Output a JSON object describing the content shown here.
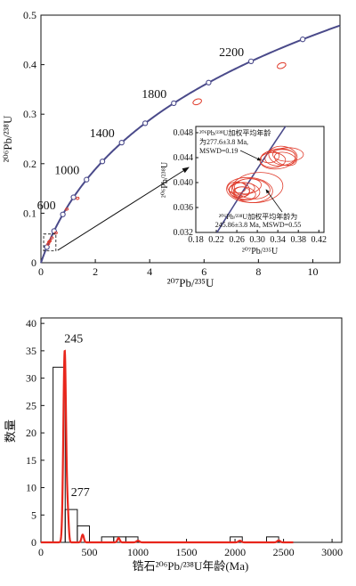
{
  "chart_data": [
    {
      "type": "scatter",
      "subtype": "concordia",
      "xlabel": "²⁰⁷Pb/²³⁵U",
      "ylabel": "²⁰⁶Pb/²³⁸U",
      "xlim": [
        0,
        11
      ],
      "ylim": [
        0,
        0.5
      ],
      "xticks": [
        "0",
        "2",
        "4",
        "6",
        "8",
        "10"
      ],
      "yticks": [
        "0",
        "0.1",
        "0.2",
        "0.3",
        "0.4",
        "0.5"
      ],
      "curve_color": "#4a4a8a",
      "ellipse_color": "#e03a2a",
      "concordia_markers": [
        {
          "label": "600",
          "age": 600
        },
        {
          "label": "1000",
          "age": 1000
        },
        {
          "label": "1400",
          "age": 1400
        },
        {
          "label": "1800",
          "age": 1800
        },
        {
          "label": "2200",
          "age": 2200
        }
      ],
      "ellipses": [
        {
          "x": 0.27,
          "y": 0.038
        },
        {
          "x": 0.3,
          "y": 0.042
        },
        {
          "x": 0.33,
          "y": 0.044
        },
        {
          "x": 0.4,
          "y": 0.05
        },
        {
          "x": 0.55,
          "y": 0.06
        },
        {
          "x": 0.95,
          "y": 0.108
        },
        {
          "x": 1.35,
          "y": 0.13
        },
        {
          "x": 5.75,
          "y": 0.325
        },
        {
          "x": 8.85,
          "y": 0.398
        }
      ],
      "inset": {
        "xlabel": "²⁰⁷Pb/²³⁵U",
        "ylabel": "²⁰⁶Pb/²³⁸U",
        "xlim": [
          0.18,
          0.43
        ],
        "ylim": [
          0.032,
          0.049
        ],
        "xticks": [
          "0.18",
          "0.22",
          "0.26",
          "0.30",
          "0.34",
          "0.38",
          "0.42"
        ],
        "yticks": [
          "0.032",
          "0.036",
          "0.040",
          "0.044",
          "0.048"
        ],
        "note_upper": [
          "²⁰⁶Pb/²³⁸U加权平均年龄",
          "为277.6±3.8 Ma,",
          "MSWD=0.19"
        ],
        "note_lower": [
          "²⁰⁶Pb/²³⁸U加权平均年龄为",
          "245.86±3.8 Ma, MSWD=0.55"
        ],
        "cluster_upper": [
          {
            "x": 0.34,
            "y": 0.0438,
            "rx": 0.035,
            "ry": 0.0016,
            "angle": -8
          },
          {
            "x": 0.345,
            "y": 0.044,
            "rx": 0.03,
            "ry": 0.0013,
            "angle": -5
          },
          {
            "x": 0.35,
            "y": 0.0443,
            "rx": 0.028,
            "ry": 0.0015,
            "angle": 10
          },
          {
            "x": 0.33,
            "y": 0.0436,
            "rx": 0.025,
            "ry": 0.0012,
            "angle": 0
          },
          {
            "x": 0.355,
            "y": 0.0438,
            "rx": 0.022,
            "ry": 0.001,
            "angle": 15
          },
          {
            "x": 0.36,
            "y": 0.0445,
            "rx": 0.03,
            "ry": 0.0011,
            "angle": 0
          },
          {
            "x": 0.325,
            "y": 0.0441,
            "rx": 0.018,
            "ry": 0.0009,
            "angle": -10
          }
        ],
        "cluster_lower": [
          {
            "x": 0.265,
            "y": 0.0388,
            "rx": 0.02,
            "ry": 0.0012,
            "angle": 0
          },
          {
            "x": 0.27,
            "y": 0.039,
            "rx": 0.025,
            "ry": 0.001,
            "angle": -5
          },
          {
            "x": 0.275,
            "y": 0.0386,
            "rx": 0.03,
            "ry": 0.0014,
            "angle": 5
          },
          {
            "x": 0.26,
            "y": 0.0392,
            "rx": 0.018,
            "ry": 0.0009,
            "angle": 0
          },
          {
            "x": 0.28,
            "y": 0.0394,
            "rx": 0.028,
            "ry": 0.0012,
            "angle": -8
          },
          {
            "x": 0.29,
            "y": 0.039,
            "rx": 0.035,
            "ry": 0.0016,
            "angle": 6
          },
          {
            "x": 0.27,
            "y": 0.0385,
            "rx": 0.015,
            "ry": 0.0008,
            "angle": 0
          },
          {
            "x": 0.285,
            "y": 0.0388,
            "rx": 0.045,
            "ry": 0.002,
            "angle": 4
          },
          {
            "x": 0.3,
            "y": 0.0392,
            "rx": 0.05,
            "ry": 0.0024,
            "angle": -6
          },
          {
            "x": 0.275,
            "y": 0.0383,
            "rx": 0.022,
            "ry": 0.001,
            "angle": 10
          }
        ]
      }
    },
    {
      "type": "bar",
      "subtype": "histogram-with-density",
      "xlabel": "锆石²⁰⁶Pb/²³⁸U年龄(Ma)",
      "ylabel": "数量",
      "xlim": [
        0,
        3100
      ],
      "ylim": [
        0,
        41
      ],
      "xticks": [
        "0",
        "500",
        "1000",
        "1500",
        "2000",
        "2500",
        "3000"
      ],
      "yticks": [
        "0",
        "5",
        "10",
        "15",
        "20",
        "25",
        "30",
        "35",
        "40"
      ],
      "bin_width": 125,
      "bins": [
        {
          "start": 125,
          "count": 32
        },
        {
          "start": 250,
          "count": 6
        },
        {
          "start": 375,
          "count": 3
        },
        {
          "start": 625,
          "count": 1
        },
        {
          "start": 750,
          "count": 1
        },
        {
          "start": 875,
          "count": 1
        },
        {
          "start": 1950,
          "count": 1
        },
        {
          "start": 2325,
          "count": 1
        }
      ],
      "peak_labels": [
        {
          "label": "245",
          "age": 245,
          "at_count": 36.5
        },
        {
          "label": "277",
          "age": 277,
          "at_count": 8.5
        }
      ],
      "density_color": "#e8261c",
      "density_peaks": [
        {
          "age": 245,
          "height": 35,
          "width": 14
        },
        {
          "age": 277,
          "height": 4.5,
          "width": 10
        },
        {
          "age": 430,
          "height": 1.4,
          "width": 12
        },
        {
          "age": 800,
          "height": 0.8,
          "width": 12
        },
        {
          "age": 1000,
          "height": 0.3,
          "width": 15
        },
        {
          "age": 2050,
          "height": 0.3,
          "width": 15
        },
        {
          "age": 2450,
          "height": 0.35,
          "width": 15
        }
      ]
    }
  ]
}
